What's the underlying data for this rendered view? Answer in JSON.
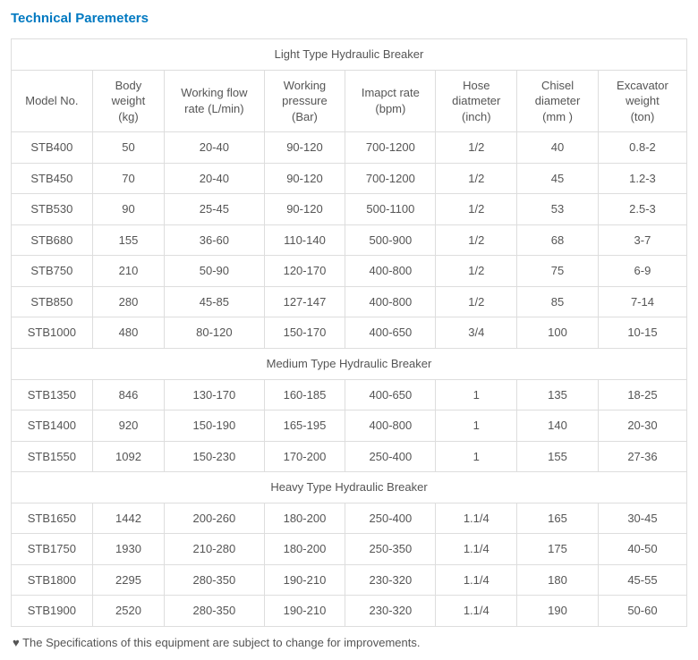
{
  "title": "Technical Paremeters",
  "sections": [
    {
      "header": "Light Type Hydraulic Breaker"
    },
    {
      "header": "Medium Type Hydraulic Breaker"
    },
    {
      "header": "Heavy Type Hydraulic Breaker"
    }
  ],
  "columns": [
    {
      "l1": "Model No.",
      "l2": ""
    },
    {
      "l1": "Body",
      "l2": "weight",
      "l3": "(kg)"
    },
    {
      "l1": "Working flow",
      "l2": "rate (L/min)"
    },
    {
      "l1": "Working",
      "l2": "pressure",
      "l3": "(Bar)"
    },
    {
      "l1": "Imapct rate",
      "l2": "(bpm)"
    },
    {
      "l1": "Hose",
      "l2": "diatmeter",
      "l3": "(inch)"
    },
    {
      "l1": "Chisel",
      "l2": "diameter",
      "l3": "(mm )"
    },
    {
      "l1": "Excavator",
      "l2": "weight",
      "l3": "(ton)"
    }
  ],
  "light_rows": [
    [
      "STB400",
      "50",
      "20-40",
      "90-120",
      "700-1200",
      "1/2",
      "40",
      "0.8-2"
    ],
    [
      "STB450",
      "70",
      "20-40",
      "90-120",
      "700-1200",
      "1/2",
      "45",
      "1.2-3"
    ],
    [
      "STB530",
      "90",
      "25-45",
      "90-120",
      "500-1100",
      "1/2",
      "53",
      "2.5-3"
    ],
    [
      "STB680",
      "155",
      "36-60",
      "110-140",
      "500-900",
      "1/2",
      "68",
      "3-7"
    ],
    [
      "STB750",
      "210",
      "50-90",
      "120-170",
      "400-800",
      "1/2",
      "75",
      "6-9"
    ],
    [
      "STB850",
      "280",
      "45-85",
      "127-147",
      "400-800",
      "1/2",
      "85",
      "7-14"
    ],
    [
      "STB1000",
      "480",
      "80-120",
      "150-170",
      "400-650",
      "3/4",
      "100",
      "10-15"
    ]
  ],
  "medium_rows": [
    [
      "STB1350",
      "846",
      "130-170",
      "160-185",
      "400-650",
      "1",
      "135",
      "18-25"
    ],
    [
      "STB1400",
      "920",
      "150-190",
      "165-195",
      "400-800",
      "1",
      "140",
      "20-30"
    ],
    [
      "STB1550",
      "1092",
      "150-230",
      "170-200",
      "250-400",
      "1",
      "155",
      "27-36"
    ]
  ],
  "heavy_rows": [
    [
      "STB1650",
      "1442",
      "200-260",
      "180-200",
      "250-400",
      "1.1/4",
      "165",
      "30-45"
    ],
    [
      "STB1750",
      "1930",
      "210-280",
      "180-200",
      "250-350",
      "1.1/4",
      "175",
      "40-50"
    ],
    [
      "STB1800",
      "2295",
      "280-350",
      "190-210",
      "230-320",
      "1.1/4",
      "180",
      "45-55"
    ],
    [
      "STB1900",
      "2520",
      "280-350",
      "190-210",
      "230-320",
      "1.1/4",
      "190",
      "50-60"
    ]
  ],
  "footnote": "♥ The Specifications of this equipment are subject to change for improvements."
}
